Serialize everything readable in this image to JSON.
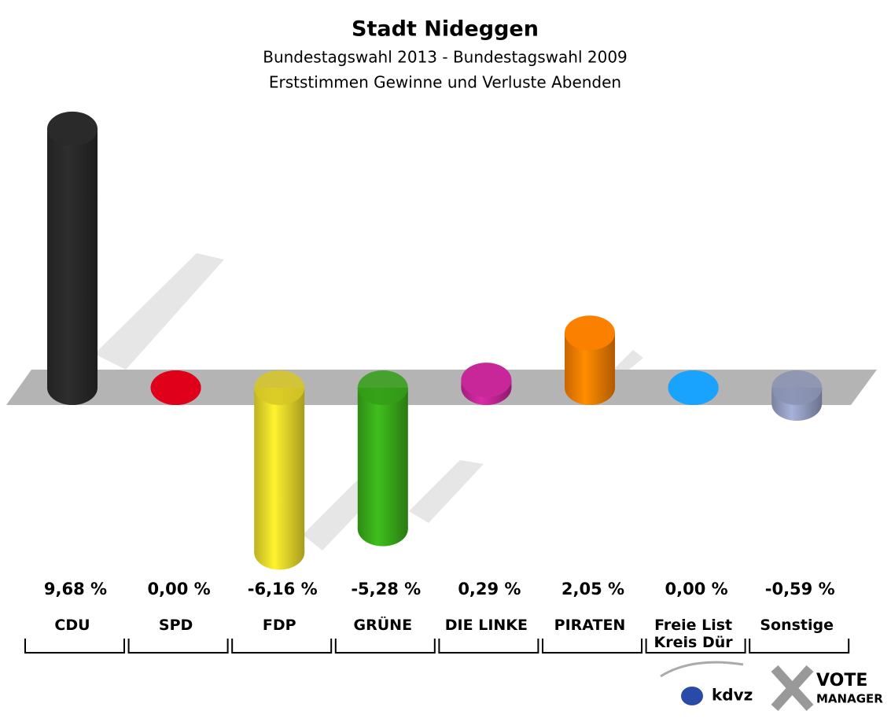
{
  "chart_data": {
    "type": "bar",
    "title": "Stadt Nideggen",
    "subtitle": [
      "Bundestagswahl 2013 - Bundestagswahl 2009",
      "Erststimmen Gewinne und Verluste Abenden"
    ],
    "categories": [
      "CDU",
      "SPD",
      "FDP",
      "GRÜNE",
      "DIE LINKE",
      "PIRATEN",
      "Freie List Kreis Dür",
      "Sonstige"
    ],
    "values": [
      9.68,
      0.0,
      -6.16,
      -5.28,
      0.29,
      2.05,
      0.0,
      -0.59
    ],
    "value_labels": [
      "9,68 %",
      "0,00 %",
      "-6,16 %",
      "-5,28 %",
      "0,29 %",
      "2,05 %",
      "0,00 %",
      "-0,59 %"
    ],
    "colors": [
      "#2a2a2a",
      "#e0001a",
      "#eedd2a",
      "#3aae1a",
      "#c8279a",
      "#fb8000",
      "#1aa2ff",
      "#98a2c6"
    ],
    "logo": [
      "kdvz",
      "VOTE",
      "MANAGER"
    ]
  }
}
